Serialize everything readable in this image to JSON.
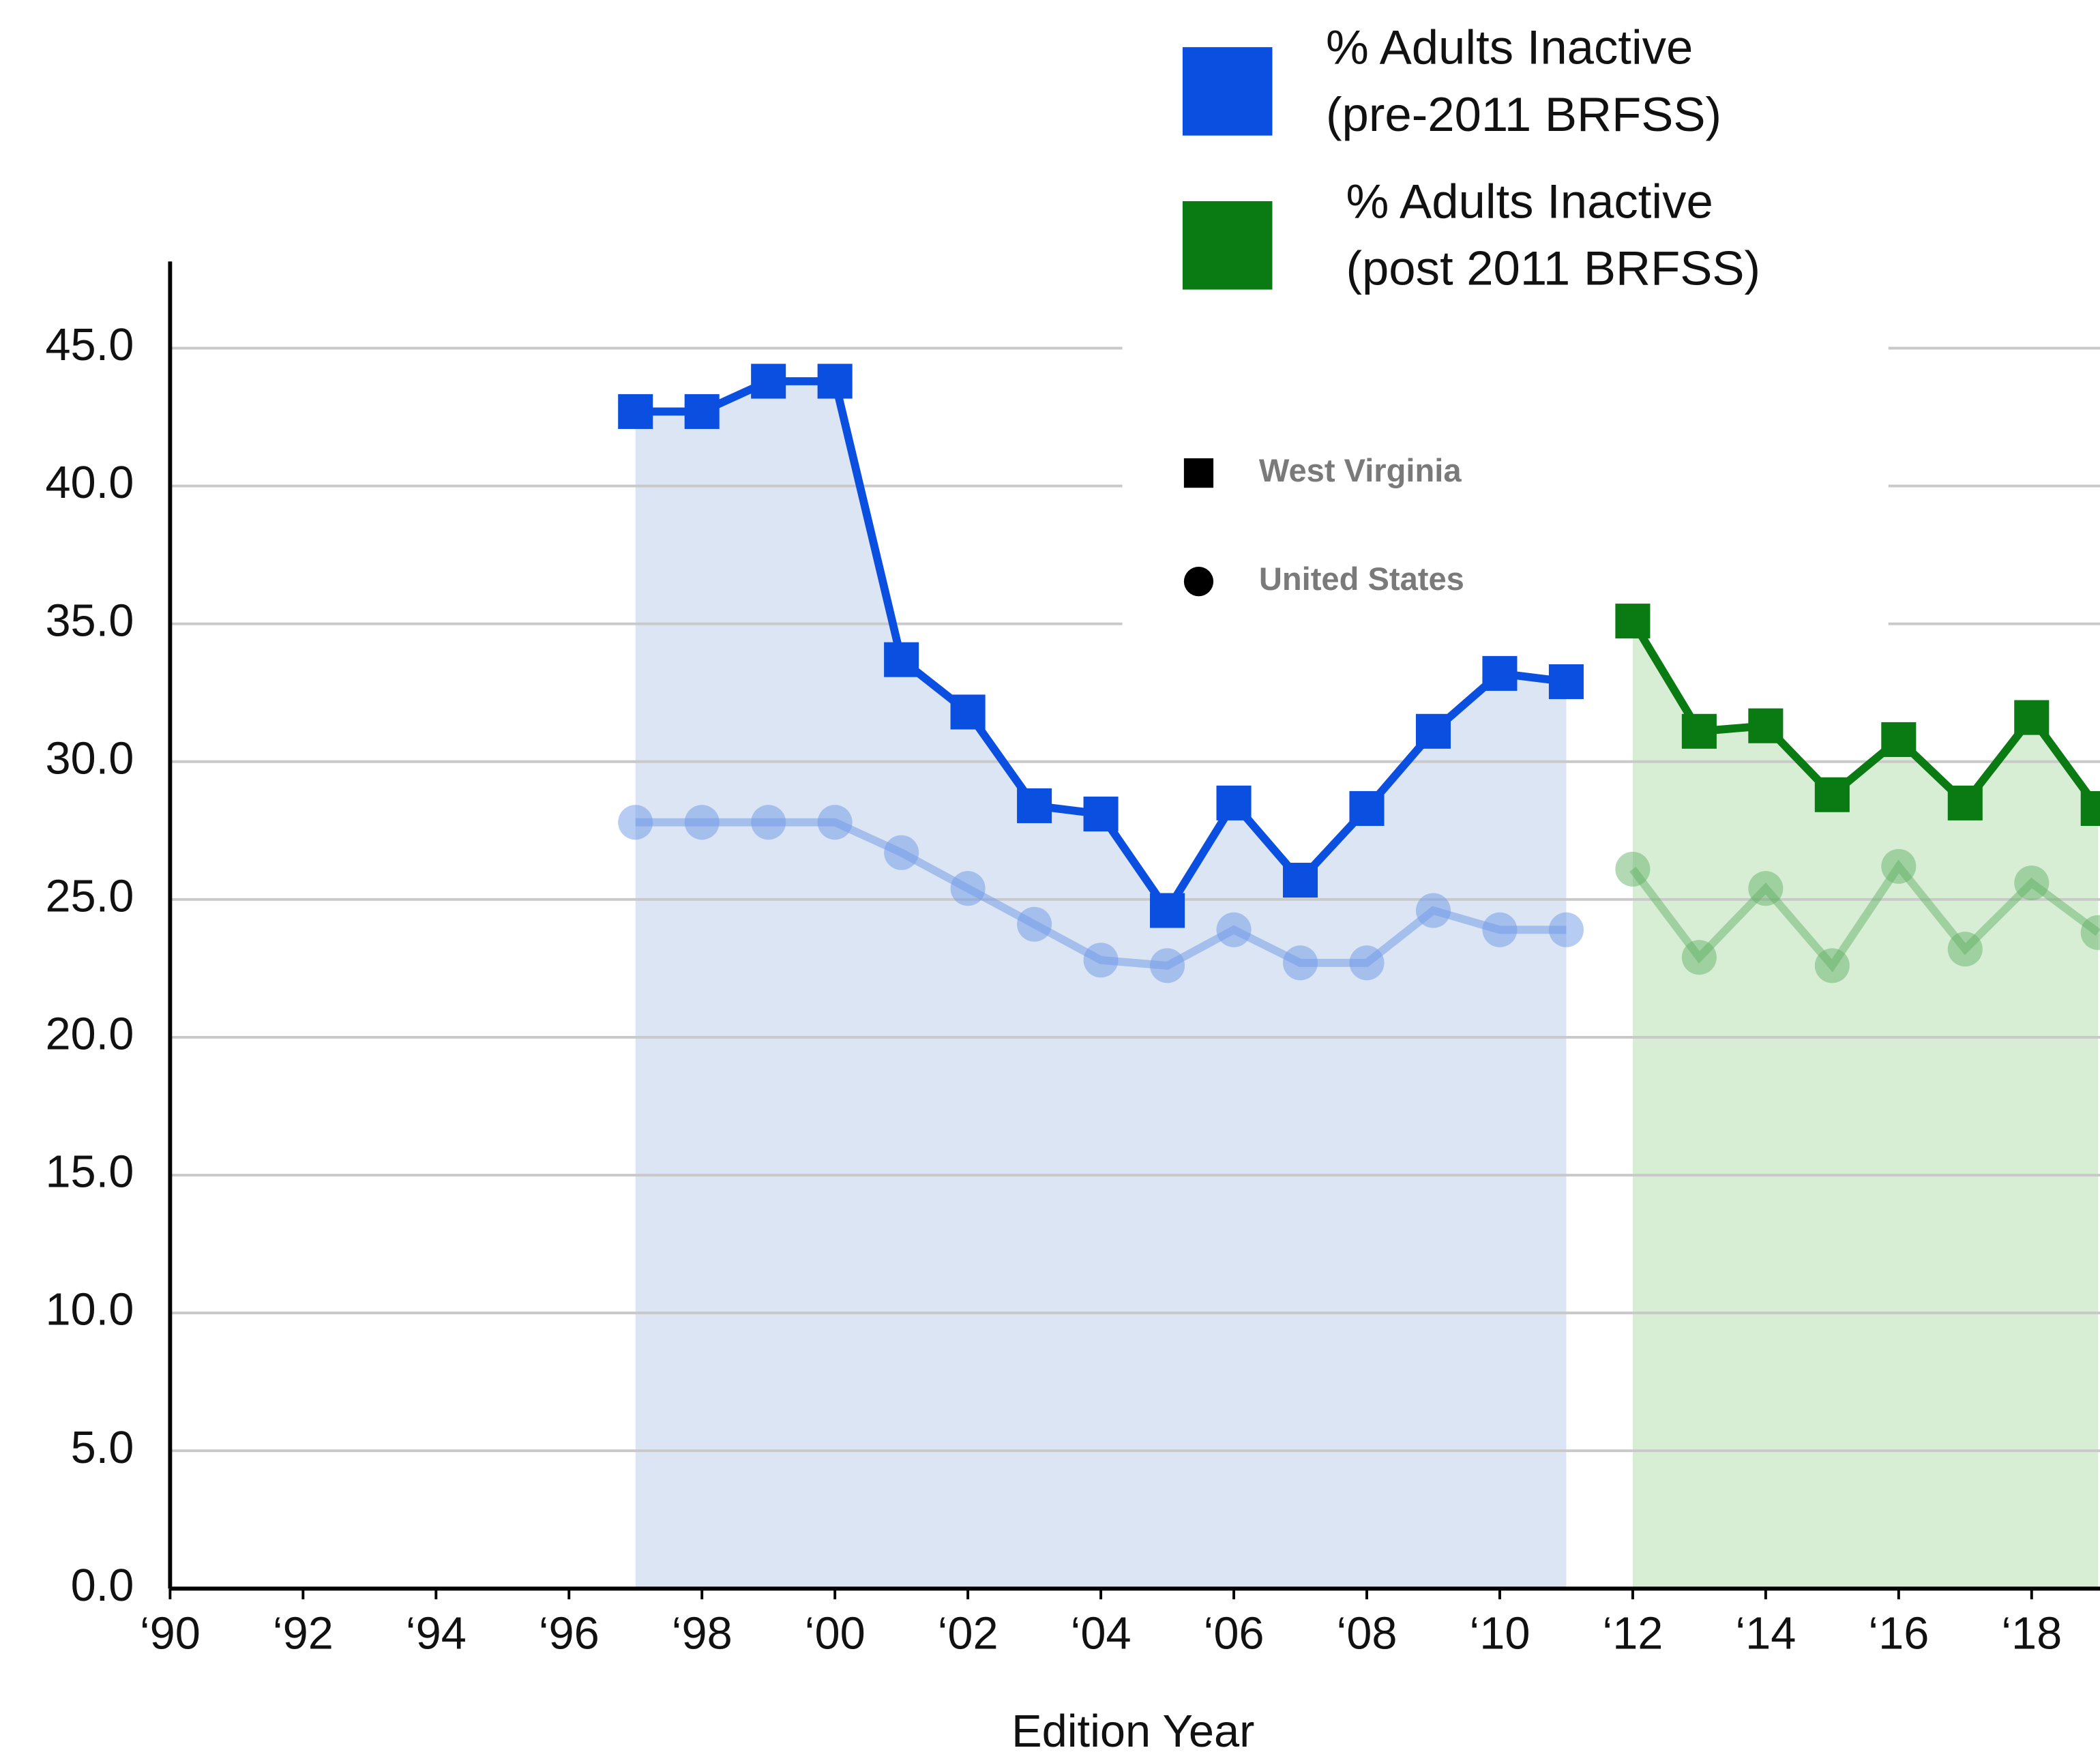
{
  "chart_data": {
    "type": "line",
    "x_label": "Edition Year",
    "xlim": [
      1990,
      2019
    ],
    "xticks": [
      {
        "value": 1990,
        "label": "‘90"
      },
      {
        "value": 1992,
        "label": "‘92"
      },
      {
        "value": 1994,
        "label": "‘94"
      },
      {
        "value": 1996,
        "label": "‘96"
      },
      {
        "value": 1998,
        "label": "‘98"
      },
      {
        "value": 2000,
        "label": "‘00"
      },
      {
        "value": 2002,
        "label": "‘02"
      },
      {
        "value": 2004,
        "label": "‘04"
      },
      {
        "value": 2006,
        "label": "‘06"
      },
      {
        "value": 2008,
        "label": "‘08"
      },
      {
        "value": 2010,
        "label": "‘10"
      },
      {
        "value": 2012,
        "label": "‘12"
      },
      {
        "value": 2014,
        "label": "‘14"
      },
      {
        "value": 2016,
        "label": "‘16"
      },
      {
        "value": 2018,
        "label": "‘18"
      }
    ],
    "ylim": [
      0,
      48
    ],
    "yticks": [
      {
        "value": 0,
        "label": "0.0"
      },
      {
        "value": 5,
        "label": "5.0"
      },
      {
        "value": 10,
        "label": "10.0"
      },
      {
        "value": 15,
        "label": "15.0"
      },
      {
        "value": 20,
        "label": "20.0"
      },
      {
        "value": 25,
        "label": "25.0"
      },
      {
        "value": 30,
        "label": "30.0"
      },
      {
        "value": 35,
        "label": "35.0"
      },
      {
        "value": 40,
        "label": "40.0"
      },
      {
        "value": 45,
        "label": "45.0"
      }
    ],
    "grid": true,
    "legend": [
      {
        "lines": [
          "% Adults Inactive",
          "(pre-2011 BRFSS)"
        ],
        "color": "#0b4fe0"
      },
      {
        "lines": [
          "% Adults Inactive",
          "(post 2011 BRFSS)"
        ],
        "color": "#0a7a12"
      }
    ],
    "series": [
      {
        "name": "West Virginia",
        "marker": "square",
        "color": "#0b4fe0",
        "area_color": "#dbe5f3",
        "x": [
          1997,
          1998,
          1999,
          2000,
          2001,
          2002,
          2003,
          2004,
          2005,
          2006,
          2007,
          2008,
          2009,
          2010,
          2011
        ],
        "values": [
          42.7,
          42.7,
          43.8,
          43.8,
          33.7,
          31.8,
          28.4,
          28.1,
          24.6,
          28.5,
          25.7,
          28.3,
          31.1,
          33.2,
          32.9
        ]
      },
      {
        "name": "United States",
        "marker": "circle",
        "color": "#6f9ae8",
        "x": [
          1997,
          1998,
          1999,
          2000,
          2001,
          2002,
          2003,
          2004,
          2005,
          2006,
          2007,
          2008,
          2009,
          2010,
          2011
        ],
        "values": [
          27.8,
          27.8,
          27.8,
          27.8,
          26.7,
          25.4,
          24.1,
          22.8,
          22.6,
          23.9,
          22.7,
          22.7,
          24.6,
          23.9,
          23.9
        ]
      },
      {
        "name": "West Virginia",
        "marker": "square",
        "color": "#0a7a12",
        "area_color": "#d8eed4",
        "x": [
          2012,
          2013,
          2014,
          2015,
          2016,
          2017,
          2018,
          2019
        ],
        "values": [
          35.1,
          31.1,
          31.3,
          28.8,
          30.8,
          28.5,
          31.6,
          28.3
        ]
      },
      {
        "name": "United States",
        "marker": "circle",
        "color": "#66b26a",
        "x": [
          2012,
          2013,
          2014,
          2015,
          2016,
          2017,
          2018,
          2019
        ],
        "values": [
          26.1,
          22.9,
          25.4,
          22.6,
          26.2,
          23.2,
          25.6,
          23.8
        ]
      }
    ]
  }
}
